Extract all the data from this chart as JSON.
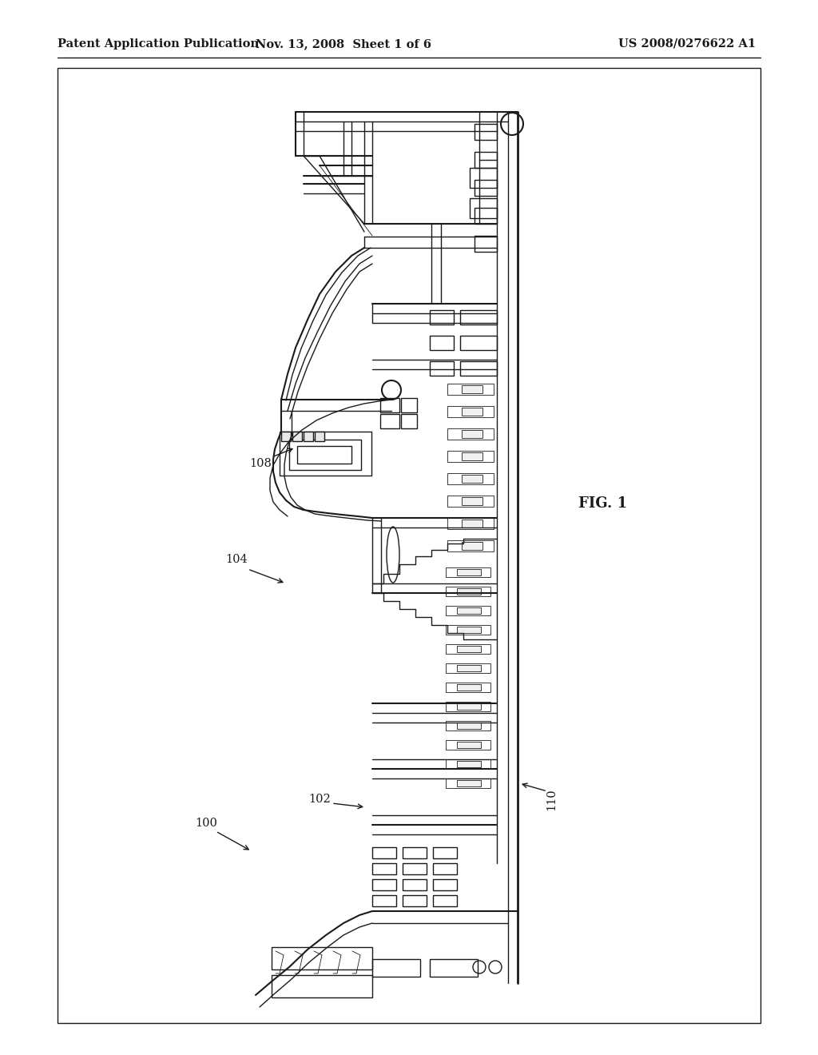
{
  "bg_color": "#ffffff",
  "line_color": "#1a1a1a",
  "header_left": "Patent Application Publication",
  "header_center": "Nov. 13, 2008  Sheet 1 of 6",
  "header_right": "US 2008/0276622 A1",
  "fig_label": "FIG. 1",
  "header_fontsize": 10.5,
  "label_fontsize": 10.5,
  "fig_label_fontsize": 13
}
